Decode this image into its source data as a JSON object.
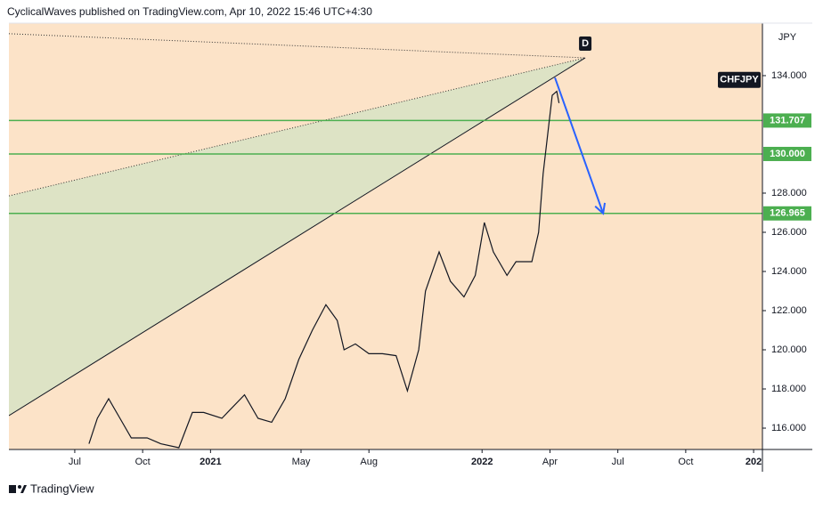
{
  "header": "CyclicalWaves published on TradingView.com, Apr 10, 2022 15:46 UTC+4:30",
  "footer": "TradingView",
  "chart_data": {
    "type": "line",
    "currency": "JPY",
    "point_label": "D",
    "background": "#fce3c8",
    "series": [
      {
        "name": "CHFJPY",
        "color": "#131722",
        "x": [
          0.63,
          1.0,
          1.5,
          2.0,
          2.5,
          3.2,
          3.8,
          4.6,
          5.2,
          5.7,
          6.5,
          7.5,
          8.1,
          8.7,
          9.3,
          9.9,
          10.5,
          11.1,
          11.6,
          11.9,
          12.4,
          13.0,
          13.6,
          14.2,
          14.7,
          15.2,
          15.5,
          16.1,
          16.6,
          17.2,
          17.7,
          18.1,
          18.5,
          19.1,
          19.5,
          20.2,
          20.5,
          20.7,
          20.9,
          21.1,
          21.3,
          21.4
        ],
        "values": [
          115.2,
          116.5,
          117.5,
          116.5,
          115.5,
          115.5,
          115.2,
          115.0,
          116.8,
          116.8,
          116.5,
          117.7,
          116.5,
          116.3,
          117.5,
          119.5,
          121.0,
          122.3,
          121.5,
          120.0,
          120.3,
          119.8,
          119.8,
          119.7,
          117.9,
          120.0,
          123.0,
          125.0,
          123.5,
          122.7,
          123.8,
          126.5,
          125.0,
          123.8,
          124.5,
          124.5,
          126.0,
          129.0,
          131.0,
          133.0,
          133.2,
          132.6
        ]
      }
    ],
    "xlim": [
      -2.91,
      30.39
    ],
    "ylim": [
      114.91,
      136.68
    ],
    "xticks": [
      {
        "value": 0,
        "label": "Jul"
      },
      {
        "value": 3,
        "label": "Oct"
      },
      {
        "value": 6,
        "label": "2021"
      },
      {
        "value": 10,
        "label": "May"
      },
      {
        "value": 13,
        "label": "Aug"
      },
      {
        "value": 18,
        "label": "2022"
      },
      {
        "value": 21,
        "label": "Apr"
      },
      {
        "value": 24,
        "label": "Jul"
      },
      {
        "value": 27,
        "label": "Oct"
      },
      {
        "value": 30,
        "label": "202"
      }
    ],
    "yticks": [
      {
        "value": 116,
        "label": "116.000"
      },
      {
        "value": 118,
        "label": "118.000"
      },
      {
        "value": 120,
        "label": "120.000"
      },
      {
        "value": 122,
        "label": "122.000"
      },
      {
        "value": 124,
        "label": "124.000"
      },
      {
        "value": 126,
        "label": "126.000"
      },
      {
        "value": 128,
        "label": "128.000"
      },
      {
        "value": 134,
        "label": "134.000"
      }
    ],
    "levels": {
      "color": "#4caf50",
      "values": [
        131.707,
        130,
        126.965
      ],
      "value_labels": [
        "131.707",
        "130.000",
        "126.965"
      ]
    },
    "arrow": {
      "color": "#2962ff",
      "x": [
        21.22,
        23.35
      ],
      "values": [
        133.9,
        126.965
      ]
    },
    "pattern": {
      "fill": "#dde3c5",
      "upper": {
        "x": [
          -2.91,
          22.56
        ],
        "values": [
          136.14,
          134.91
        ]
      },
      "lower": {
        "x": [
          -2.91,
          22.56
        ],
        "values": [
          127.86,
          134.91
        ]
      },
      "base": {
        "x": [
          -2.91,
          22.56
        ],
        "values": [
          116.64,
          134.91
        ]
      }
    }
  }
}
